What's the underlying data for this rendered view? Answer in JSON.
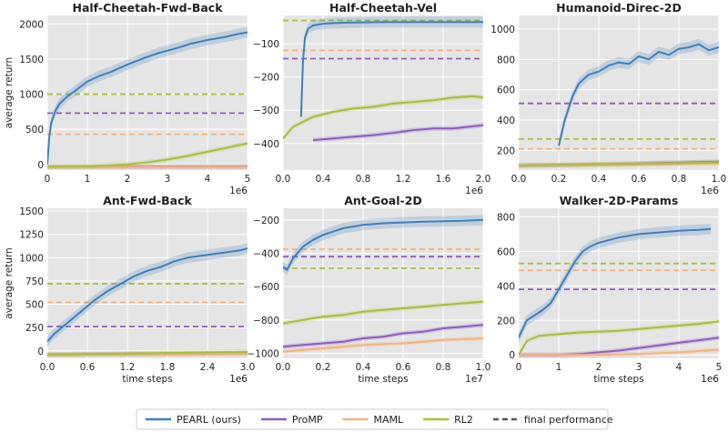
{
  "figure": {
    "ylabel_shared": "average return",
    "xlabel_shared": "time steps"
  },
  "legend": {
    "position": "bottom-center",
    "entries": [
      {
        "label": "PEARL (ours)",
        "color": "#3f7fbd",
        "style": "solid"
      },
      {
        "label": "ProMP",
        "color": "#8e5cc0",
        "style": "solid"
      },
      {
        "label": "MAML",
        "color": "#f5b27c",
        "style": "solid"
      },
      {
        "label": "RL2",
        "color": "#a8bf38",
        "style": "solid"
      },
      {
        "label": "final performance",
        "color": "#555555",
        "style": "dashed"
      }
    ]
  },
  "chart_data": [
    {
      "type": "line",
      "title": "Half-Cheetah-Fwd-Back",
      "xlabel": "",
      "ylabel": "average return",
      "xlim": [
        0,
        5
      ],
      "ylim": [
        -80,
        2120
      ],
      "xticks": [
        0,
        1,
        2,
        3,
        4,
        5
      ],
      "yticks": [
        0,
        500,
        1000,
        1500,
        2000
      ],
      "xticklabels": [
        "0",
        "1",
        "2",
        "3",
        "4",
        "5"
      ],
      "yticklabels": [
        "0",
        "500",
        "1000",
        "1500",
        "2000"
      ],
      "offset_label": "1e6",
      "grid": true,
      "series": [
        {
          "name": "PEARL (ours)",
          "x": [
            0,
            0.05,
            0.1,
            0.2,
            0.3,
            0.5,
            0.7,
            1.0,
            1.3,
            1.6,
            2.0,
            2.4,
            2.8,
            3.2,
            3.6,
            4.0,
            4.4,
            4.8,
            5.0
          ],
          "y": [
            0,
            400,
            600,
            760,
            860,
            970,
            1050,
            1180,
            1260,
            1320,
            1420,
            1510,
            1590,
            1650,
            1720,
            1770,
            1810,
            1860,
            1880
          ]
        },
        {
          "name": "ProMP",
          "x": [
            0,
            1,
            2,
            3,
            4,
            5
          ],
          "y": [
            -30,
            -30,
            -30,
            -30,
            -30,
            -30
          ]
        },
        {
          "name": "MAML",
          "x": [
            0,
            1,
            2,
            3,
            4,
            5
          ],
          "y": [
            -40,
            -38,
            -35,
            -35,
            -35,
            -35
          ]
        },
        {
          "name": "RL2",
          "x": [
            0,
            1,
            1.5,
            2,
            2.5,
            3,
            3.5,
            4,
            4.5,
            5
          ],
          "y": [
            -30,
            -25,
            -15,
            0,
            30,
            70,
            120,
            180,
            240,
            300
          ]
        }
      ],
      "final": [
        {
          "name": "RL2",
          "y": 1000
        },
        {
          "name": "ProMP",
          "y": 730
        },
        {
          "name": "MAML",
          "y": 430
        }
      ]
    },
    {
      "type": "line",
      "title": "Half-Cheetah-Vel",
      "xlabel": "",
      "ylabel": "",
      "xlim": [
        0,
        2
      ],
      "ylim": [
        -480,
        -15
      ],
      "xticks": [
        0,
        0.4,
        0.8,
        1.2,
        1.6,
        2.0
      ],
      "yticks": [
        -400,
        -300,
        -200,
        -100
      ],
      "xticklabels": [
        "0.0",
        "0.4",
        "0.8",
        "1.2",
        "1.6",
        "2.0"
      ],
      "yticklabels": [
        "−400",
        "−300",
        "−200",
        "−100"
      ],
      "offset_label": "1e6",
      "grid": true,
      "series": [
        {
          "name": "PEARL (ours)",
          "x": [
            0.18,
            0.2,
            0.22,
            0.25,
            0.3,
            0.4,
            0.5,
            0.7,
            1.0,
            1.3,
            1.6,
            2.0
          ],
          "y": [
            -320,
            -150,
            -80,
            -55,
            -45,
            -40,
            -38,
            -36,
            -35,
            -35,
            -35,
            -35
          ]
        },
        {
          "name": "RL2",
          "x": [
            0,
            0.1,
            0.3,
            0.5,
            0.7,
            0.9,
            1.1,
            1.3,
            1.5,
            1.7,
            1.9,
            2.0
          ],
          "y": [
            -385,
            -350,
            -320,
            -305,
            -295,
            -290,
            -280,
            -275,
            -270,
            -262,
            -258,
            -262
          ]
        },
        {
          "name": "ProMP",
          "x": [
            0.3,
            0.5,
            0.7,
            0.9,
            1.1,
            1.3,
            1.5,
            1.7,
            2.0
          ],
          "y": [
            -390,
            -385,
            -380,
            -375,
            -368,
            -360,
            -355,
            -355,
            -345
          ]
        }
      ],
      "final": [
        {
          "name": "RL2",
          "y": -30
        },
        {
          "name": "MAML",
          "y": -120
        },
        {
          "name": "ProMP",
          "y": -145
        }
      ]
    },
    {
      "type": "line",
      "title": "Humanoid-Direc-2D",
      "xlabel": "",
      "ylabel": "",
      "xlim": [
        0,
        1
      ],
      "ylim": [
        70,
        1090
      ],
      "xticks": [
        0,
        0.2,
        0.4,
        0.6,
        0.8,
        1.0
      ],
      "yticks": [
        200,
        400,
        600,
        800,
        1000
      ],
      "xticklabels": [
        "0.0",
        "0.2",
        "0.4",
        "0.6",
        "0.8",
        "1.0"
      ],
      "yticklabels": [
        "200",
        "400",
        "600",
        "800",
        "1000"
      ],
      "offset_label": "1e6",
      "grid": true,
      "series": [
        {
          "name": "PEARL (ours)",
          "x": [
            0.2,
            0.23,
            0.27,
            0.3,
            0.35,
            0.4,
            0.45,
            0.5,
            0.55,
            0.6,
            0.65,
            0.7,
            0.75,
            0.8,
            0.85,
            0.9,
            0.95,
            1.0
          ],
          "y": [
            230,
            400,
            560,
            640,
            700,
            720,
            760,
            780,
            770,
            820,
            800,
            850,
            830,
            870,
            880,
            900,
            860,
            880
          ]
        },
        {
          "name": "ProMP",
          "x": [
            0,
            0.5,
            1.0
          ],
          "y": [
            100,
            110,
            125
          ]
        },
        {
          "name": "MAML",
          "x": [
            0,
            0.5,
            1.0
          ],
          "y": [
            100,
            105,
            115
          ]
        },
        {
          "name": "RL2",
          "x": [
            0,
            0.5,
            1.0
          ],
          "y": [
            100,
            110,
            120
          ]
        }
      ],
      "final": [
        {
          "name": "ProMP",
          "y": 510
        },
        {
          "name": "RL2",
          "y": 275
        },
        {
          "name": "MAML",
          "y": 210
        }
      ]
    },
    {
      "type": "line",
      "title": "Ant-Fwd-Back",
      "xlabel": "time steps",
      "ylabel": "average return",
      "xlim": [
        0,
        3
      ],
      "ylim": [
        -80,
        1530
      ],
      "xticks": [
        0,
        0.6,
        1.2,
        1.8,
        2.4,
        3.0
      ],
      "yticks": [
        0,
        250,
        500,
        750,
        1000,
        1250,
        1500
      ],
      "xticklabels": [
        "0.0",
        "0.6",
        "1.2",
        "1.8",
        "2.4",
        "3.0"
      ],
      "yticklabels": [
        "0",
        "250",
        "500",
        "750",
        "1000",
        "1250",
        "1500"
      ],
      "offset_label": "1e6",
      "grid": true,
      "series": [
        {
          "name": "PEARL (ours)",
          "x": [
            0,
            0.1,
            0.2,
            0.3,
            0.5,
            0.7,
            0.9,
            1.1,
            1.3,
            1.5,
            1.7,
            1.9,
            2.1,
            2.3,
            2.5,
            2.7,
            2.9,
            3.0
          ],
          "y": [
            100,
            180,
            240,
            300,
            420,
            540,
            640,
            720,
            800,
            860,
            900,
            960,
            1000,
            1020,
            1040,
            1060,
            1080,
            1100
          ]
        },
        {
          "name": "ProMP",
          "x": [
            0,
            1,
            2,
            3
          ],
          "y": [
            -40,
            -35,
            -30,
            -25
          ]
        },
        {
          "name": "MAML",
          "x": [
            0,
            1,
            2,
            3
          ],
          "y": [
            -45,
            -40,
            -35,
            -30
          ]
        },
        {
          "name": "RL2",
          "x": [
            0,
            1,
            2,
            3
          ],
          "y": [
            -40,
            -30,
            -20,
            -10
          ]
        }
      ],
      "final": [
        {
          "name": "RL2",
          "y": 720
        },
        {
          "name": "MAML",
          "y": 520
        },
        {
          "name": "ProMP",
          "y": 260
        }
      ]
    },
    {
      "type": "line",
      "title": "Ant-Goal-2D",
      "xlabel": "time steps",
      "ylabel": "",
      "xlim": [
        0,
        1
      ],
      "ylim": [
        -1030,
        -130
      ],
      "xticks": [
        0,
        0.2,
        0.4,
        0.6,
        0.8,
        1.0
      ],
      "yticks": [
        -1000,
        -800,
        -600,
        -400,
        -200
      ],
      "xticklabels": [
        "0.0",
        "0.2",
        "0.4",
        "0.6",
        "0.8",
        "1.0"
      ],
      "yticklabels": [
        "−1000",
        "−800",
        "−600",
        "−400",
        "−200"
      ],
      "offset_label": "1e7",
      "grid": true,
      "series": [
        {
          "name": "PEARL (ours)",
          "x": [
            0,
            0.02,
            0.05,
            0.1,
            0.15,
            0.2,
            0.3,
            0.4,
            0.5,
            0.6,
            0.7,
            0.8,
            0.9,
            1.0
          ],
          "y": [
            -480,
            -500,
            -430,
            -360,
            -320,
            -290,
            -250,
            -230,
            -220,
            -215,
            -210,
            -208,
            -205,
            -200
          ]
        },
        {
          "name": "RL2",
          "x": [
            0,
            0.1,
            0.2,
            0.3,
            0.4,
            0.5,
            0.6,
            0.7,
            0.8,
            0.9,
            1.0
          ],
          "y": [
            -820,
            -800,
            -780,
            -770,
            -750,
            -740,
            -730,
            -720,
            -710,
            -700,
            -690
          ]
        },
        {
          "name": "ProMP",
          "x": [
            0,
            0.1,
            0.2,
            0.3,
            0.4,
            0.5,
            0.6,
            0.7,
            0.8,
            0.9,
            1.0
          ],
          "y": [
            -960,
            -950,
            -940,
            -930,
            -910,
            -900,
            -880,
            -870,
            -850,
            -840,
            -830
          ]
        },
        {
          "name": "MAML",
          "x": [
            0,
            0.1,
            0.2,
            0.3,
            0.4,
            0.5,
            0.6,
            0.7,
            0.8,
            0.9,
            1.0
          ],
          "y": [
            -990,
            -980,
            -970,
            -960,
            -950,
            -945,
            -940,
            -930,
            -920,
            -915,
            -910
          ]
        }
      ],
      "final": [
        {
          "name": "MAML",
          "y": -375
        },
        {
          "name": "ProMP",
          "y": -420
        },
        {
          "name": "RL2",
          "y": -490
        }
      ]
    },
    {
      "type": "line",
      "title": "Walker-2D-Params",
      "xlabel": "time steps",
      "ylabel": "",
      "xlim": [
        0,
        5
      ],
      "ylim": [
        -20,
        850
      ],
      "xticks": [
        0,
        1,
        2,
        3,
        4,
        5
      ],
      "yticks": [
        0,
        200,
        400,
        600,
        800
      ],
      "xticklabels": [
        "0",
        "1",
        "2",
        "3",
        "4",
        "5"
      ],
      "yticklabels": [
        "0",
        "200",
        "400",
        "600",
        "800"
      ],
      "offset_label": "1e6",
      "grid": true,
      "series": [
        {
          "name": "PEARL (ours)",
          "x": [
            0,
            0.2,
            0.4,
            0.6,
            0.8,
            1.0,
            1.2,
            1.4,
            1.6,
            1.8,
            2.0,
            2.5,
            3.0,
            3.5,
            4.0,
            4.5,
            4.8
          ],
          "y": [
            100,
            200,
            230,
            260,
            300,
            380,
            460,
            540,
            600,
            630,
            650,
            680,
            700,
            710,
            720,
            725,
            730
          ]
        },
        {
          "name": "RL2",
          "x": [
            0,
            0.2,
            0.5,
            1,
            1.5,
            2,
            2.5,
            3,
            3.5,
            4,
            4.5,
            5
          ],
          "y": [
            0,
            80,
            110,
            120,
            130,
            135,
            140,
            150,
            160,
            170,
            180,
            195
          ]
        },
        {
          "name": "ProMP",
          "x": [
            0,
            1,
            1.5,
            2,
            2.5,
            3,
            3.5,
            4,
            4.5,
            5
          ],
          "y": [
            0,
            0,
            5,
            15,
            25,
            40,
            55,
            70,
            85,
            100
          ]
        },
        {
          "name": "MAML",
          "x": [
            0,
            2,
            3,
            4,
            5
          ],
          "y": [
            0,
            0,
            5,
            15,
            30
          ]
        }
      ],
      "final": [
        {
          "name": "RL2",
          "y": 530
        },
        {
          "name": "MAML",
          "y": 490
        },
        {
          "name": "ProMP",
          "y": 380
        }
      ]
    }
  ]
}
